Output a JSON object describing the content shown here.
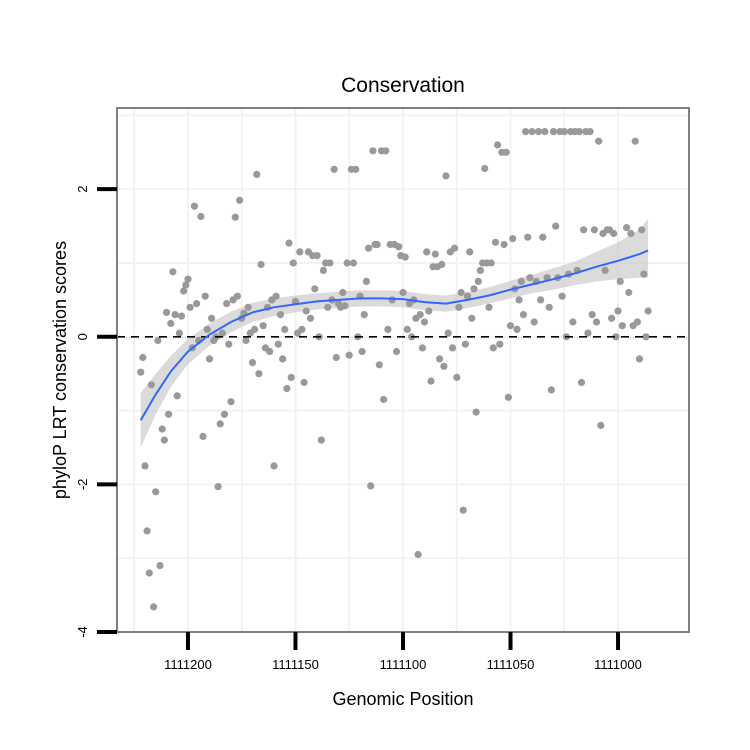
{
  "chart_data": {
    "type": "scatter",
    "title": "Conservation",
    "xlabel": "Genomic Position",
    "ylabel": "phyloP LRT conservation scores",
    "x_reversed": true,
    "xlim": [
      1111233,
      1110967
    ],
    "ylim": [
      -4,
      3.1
    ],
    "grid": true,
    "x_ticks": [
      1111200,
      1111150,
      1111100,
      1111050,
      1111000
    ],
    "x_tick_labels": [
      "1111200",
      "1111150",
      "1111100",
      "1111050",
      "1111000"
    ],
    "y_ticks": [
      -4,
      -2,
      0,
      2
    ],
    "y_tick_labels": [
      "-4",
      "-2",
      "0",
      "2"
    ],
    "reference_line": {
      "y": 0,
      "style": "dashed",
      "color": "#000000"
    },
    "colors": {
      "points": "#999999",
      "smooth": "#3366ff",
      "band": "#cccccc",
      "panel_border": "#7f7f7f",
      "grid": "#f2f2f2"
    },
    "points": [
      {
        "x": 1111222,
        "y": -0.48
      },
      {
        "x": 1111221,
        "y": -0.28
      },
      {
        "x": 1111220,
        "y": -1.75
      },
      {
        "x": 1111219,
        "y": -2.63
      },
      {
        "x": 1111218,
        "y": -3.2
      },
      {
        "x": 1111217,
        "y": -0.65
      },
      {
        "x": 1111216,
        "y": -3.66
      },
      {
        "x": 1111215,
        "y": -2.1
      },
      {
        "x": 1111214,
        "y": -0.05
      },
      {
        "x": 1111213,
        "y": -3.1
      },
      {
        "x": 1111212,
        "y": -1.25
      },
      {
        "x": 1111211,
        "y": -1.4
      },
      {
        "x": 1111210,
        "y": 0.33
      },
      {
        "x": 1111209,
        "y": -1.05
      },
      {
        "x": 1111208,
        "y": 0.18
      },
      {
        "x": 1111207,
        "y": 0.88
      },
      {
        "x": 1111206,
        "y": 0.3
      },
      {
        "x": 1111205,
        "y": -0.8
      },
      {
        "x": 1111204,
        "y": 0.05
      },
      {
        "x": 1111203,
        "y": 0.28
      },
      {
        "x": 1111202,
        "y": 0.62
      },
      {
        "x": 1111201,
        "y": 0.7
      },
      {
        "x": 1111200,
        "y": 0.78
      },
      {
        "x": 1111199,
        "y": 0.4
      },
      {
        "x": 1111198,
        "y": -0.15
      },
      {
        "x": 1111197,
        "y": 1.77
      },
      {
        "x": 1111196,
        "y": 0.45
      },
      {
        "x": 1111195,
        "y": -0.05
      },
      {
        "x": 1111194,
        "y": 1.63
      },
      {
        "x": 1111193,
        "y": -1.35
      },
      {
        "x": 1111192,
        "y": 0.55
      },
      {
        "x": 1111191,
        "y": 0.1
      },
      {
        "x": 1111190,
        "y": -0.3
      },
      {
        "x": 1111189,
        "y": 0.25
      },
      {
        "x": 1111188,
        "y": -0.05
      },
      {
        "x": 1111187,
        "y": 0.0
      },
      {
        "x": 1111186,
        "y": -2.03
      },
      {
        "x": 1111185,
        "y": -1.18
      },
      {
        "x": 1111184,
        "y": 0.05
      },
      {
        "x": 1111183,
        "y": -1.05
      },
      {
        "x": 1111182,
        "y": 0.45
      },
      {
        "x": 1111181,
        "y": -0.1
      },
      {
        "x": 1111180,
        "y": -0.88
      },
      {
        "x": 1111179,
        "y": 0.5
      },
      {
        "x": 1111178,
        "y": 1.62
      },
      {
        "x": 1111177,
        "y": 0.55
      },
      {
        "x": 1111176,
        "y": 1.85
      },
      {
        "x": 1111175,
        "y": 0.25
      },
      {
        "x": 1111174,
        "y": 0.32
      },
      {
        "x": 1111173,
        "y": -0.05
      },
      {
        "x": 1111172,
        "y": 0.4
      },
      {
        "x": 1111171,
        "y": 0.05
      },
      {
        "x": 1111170,
        "y": -0.35
      },
      {
        "x": 1111169,
        "y": 0.1
      },
      {
        "x": 1111168,
        "y": 2.2
      },
      {
        "x": 1111167,
        "y": -0.5
      },
      {
        "x": 1111166,
        "y": 0.98
      },
      {
        "x": 1111165,
        "y": 0.15
      },
      {
        "x": 1111164,
        "y": -0.15
      },
      {
        "x": 1111163,
        "y": 0.4
      },
      {
        "x": 1111162,
        "y": -0.2
      },
      {
        "x": 1111161,
        "y": 0.5
      },
      {
        "x": 1111160,
        "y": -1.75
      },
      {
        "x": 1111159,
        "y": 0.55
      },
      {
        "x": 1111158,
        "y": -0.1
      },
      {
        "x": 1111157,
        "y": 0.3
      },
      {
        "x": 1111156,
        "y": -0.3
      },
      {
        "x": 1111155,
        "y": 0.1
      },
      {
        "x": 1111154,
        "y": -0.7
      },
      {
        "x": 1111153,
        "y": 1.27
      },
      {
        "x": 1111152,
        "y": -0.55
      },
      {
        "x": 1111151,
        "y": 1.0
      },
      {
        "x": 1111150,
        "y": 0.48
      },
      {
        "x": 1111149,
        "y": 0.05
      },
      {
        "x": 1111148,
        "y": 1.15
      },
      {
        "x": 1111147,
        "y": 0.1
      },
      {
        "x": 1111146,
        "y": -0.62
      },
      {
        "x": 1111145,
        "y": 0.35
      },
      {
        "x": 1111144,
        "y": 1.15
      },
      {
        "x": 1111143,
        "y": 0.25
      },
      {
        "x": 1111142,
        "y": 1.1
      },
      {
        "x": 1111141,
        "y": 0.65
      },
      {
        "x": 1111140,
        "y": 1.1
      },
      {
        "x": 1111139,
        "y": 0.0
      },
      {
        "x": 1111138,
        "y": -1.4
      },
      {
        "x": 1111137,
        "y": 0.9
      },
      {
        "x": 1111136,
        "y": 1.0
      },
      {
        "x": 1111135,
        "y": 0.4
      },
      {
        "x": 1111134,
        "y": 1.0
      },
      {
        "x": 1111133,
        "y": 0.5
      },
      {
        "x": 1111132,
        "y": 2.27
      },
      {
        "x": 1111131,
        "y": -0.28
      },
      {
        "x": 1111130,
        "y": 0.45
      },
      {
        "x": 1111129,
        "y": 0.4
      },
      {
        "x": 1111128,
        "y": 0.6
      },
      {
        "x": 1111127,
        "y": 0.42
      },
      {
        "x": 1111126,
        "y": 1.0
      },
      {
        "x": 1111125,
        "y": -0.25
      },
      {
        "x": 1111124,
        "y": 2.27
      },
      {
        "x": 1111123,
        "y": 1.0
      },
      {
        "x": 1111122,
        "y": 2.27
      },
      {
        "x": 1111121,
        "y": 0.0
      },
      {
        "x": 1111120,
        "y": 0.55
      },
      {
        "x": 1111119,
        "y": -0.2
      },
      {
        "x": 1111118,
        "y": 0.3
      },
      {
        "x": 1111117,
        "y": 0.75
      },
      {
        "x": 1111116,
        "y": 1.2
      },
      {
        "x": 1111115,
        "y": -2.02
      },
      {
        "x": 1111114,
        "y": 2.52
      },
      {
        "x": 1111113,
        "y": 1.25
      },
      {
        "x": 1111112,
        "y": 1.25
      },
      {
        "x": 1111111,
        "y": -0.38
      },
      {
        "x": 1111110,
        "y": 2.52
      },
      {
        "x": 1111109,
        "y": -0.85
      },
      {
        "x": 1111108,
        "y": 2.52
      },
      {
        "x": 1111107,
        "y": 0.1
      },
      {
        "x": 1111106,
        "y": 1.25
      },
      {
        "x": 1111105,
        "y": 0.5
      },
      {
        "x": 1111104,
        "y": 1.25
      },
      {
        "x": 1111103,
        "y": -0.2
      },
      {
        "x": 1111102,
        "y": 1.22
      },
      {
        "x": 1111101,
        "y": 1.1
      },
      {
        "x": 1111100,
        "y": 0.6
      },
      {
        "x": 1111099,
        "y": 1.08
      },
      {
        "x": 1111098,
        "y": 0.1
      },
      {
        "x": 1111097,
        "y": 0.45
      },
      {
        "x": 1111096,
        "y": 0.0
      },
      {
        "x": 1111095,
        "y": 0.5
      },
      {
        "x": 1111094,
        "y": 0.25
      },
      {
        "x": 1111093,
        "y": -2.95
      },
      {
        "x": 1111092,
        "y": 0.3
      },
      {
        "x": 1111091,
        "y": -0.15
      },
      {
        "x": 1111090,
        "y": 0.2
      },
      {
        "x": 1111089,
        "y": 1.15
      },
      {
        "x": 1111088,
        "y": 0.35
      },
      {
        "x": 1111087,
        "y": -0.6
      },
      {
        "x": 1111086,
        "y": 0.95
      },
      {
        "x": 1111085,
        "y": 1.12
      },
      {
        "x": 1111084,
        "y": 0.95
      },
      {
        "x": 1111083,
        "y": -0.3
      },
      {
        "x": 1111082,
        "y": 0.98
      },
      {
        "x": 1111081,
        "y": -0.4
      },
      {
        "x": 1111080,
        "y": 2.18
      },
      {
        "x": 1111079,
        "y": 0.05
      },
      {
        "x": 1111078,
        "y": 1.15
      },
      {
        "x": 1111077,
        "y": -0.15
      },
      {
        "x": 1111076,
        "y": 1.2
      },
      {
        "x": 1111075,
        "y": -0.55
      },
      {
        "x": 1111074,
        "y": 0.4
      },
      {
        "x": 1111073,
        "y": 0.6
      },
      {
        "x": 1111072,
        "y": -2.35
      },
      {
        "x": 1111071,
        "y": -0.1
      },
      {
        "x": 1111070,
        "y": 0.55
      },
      {
        "x": 1111069,
        "y": 1.15
      },
      {
        "x": 1111068,
        "y": 0.25
      },
      {
        "x": 1111067,
        "y": 0.65
      },
      {
        "x": 1111066,
        "y": -1.02
      },
      {
        "x": 1111065,
        "y": 0.75
      },
      {
        "x": 1111064,
        "y": 0.9
      },
      {
        "x": 1111063,
        "y": 1.0
      },
      {
        "x": 1111062,
        "y": 2.28
      },
      {
        "x": 1111061,
        "y": 1.0
      },
      {
        "x": 1111060,
        "y": 0.4
      },
      {
        "x": 1111059,
        "y": 1.0
      },
      {
        "x": 1111058,
        "y": -0.15
      },
      {
        "x": 1111057,
        "y": 1.28
      },
      {
        "x": 1111056,
        "y": 2.6
      },
      {
        "x": 1111055,
        "y": -0.1
      },
      {
        "x": 1111054,
        "y": 2.5
      },
      {
        "x": 1111053,
        "y": 1.25
      },
      {
        "x": 1111052,
        "y": 2.5
      },
      {
        "x": 1111051,
        "y": -0.82
      },
      {
        "x": 1111050,
        "y": 0.15
      },
      {
        "x": 1111049,
        "y": 1.33
      },
      {
        "x": 1111048,
        "y": 0.65
      },
      {
        "x": 1111047,
        "y": 0.1
      },
      {
        "x": 1111046,
        "y": 0.5
      },
      {
        "x": 1111045,
        "y": 0.75
      },
      {
        "x": 1111044,
        "y": 0.3
      },
      {
        "x": 1111043,
        "y": 2.78
      },
      {
        "x": 1111042,
        "y": 1.35
      },
      {
        "x": 1111041,
        "y": 0.8
      },
      {
        "x": 1111040,
        "y": 2.78
      },
      {
        "x": 1111039,
        "y": 0.2
      },
      {
        "x": 1111038,
        "y": 0.75
      },
      {
        "x": 1111037,
        "y": 2.78
      },
      {
        "x": 1111036,
        "y": 0.5
      },
      {
        "x": 1111035,
        "y": 1.35
      },
      {
        "x": 1111034,
        "y": 2.78
      },
      {
        "x": 1111033,
        "y": 0.8
      },
      {
        "x": 1111032,
        "y": 0.4
      },
      {
        "x": 1111031,
        "y": -0.72
      },
      {
        "x": 1111030,
        "y": 2.78
      },
      {
        "x": 1111029,
        "y": 1.5
      },
      {
        "x": 1111028,
        "y": 0.8
      },
      {
        "x": 1111027,
        "y": 2.78
      },
      {
        "x": 1111026,
        "y": 0.55
      },
      {
        "x": 1111025,
        "y": 2.78
      },
      {
        "x": 1111024,
        "y": 0.0
      },
      {
        "x": 1111023,
        "y": 0.85
      },
      {
        "x": 1111022,
        "y": 2.78
      },
      {
        "x": 1111021,
        "y": 0.2
      },
      {
        "x": 1111020,
        "y": 2.78
      },
      {
        "x": 1111019,
        "y": 0.9
      },
      {
        "x": 1111018,
        "y": 2.78
      },
      {
        "x": 1111017,
        "y": -0.62
      },
      {
        "x": 1111016,
        "y": 1.45
      },
      {
        "x": 1111015,
        "y": 2.78
      },
      {
        "x": 1111014,
        "y": 0.05
      },
      {
        "x": 1111013,
        "y": 2.78
      },
      {
        "x": 1111012,
        "y": 0.3
      },
      {
        "x": 1111011,
        "y": 1.45
      },
      {
        "x": 1111010,
        "y": 0.2
      },
      {
        "x": 1111009,
        "y": 2.65
      },
      {
        "x": 1111008,
        "y": -1.2
      },
      {
        "x": 1111007,
        "y": 1.4
      },
      {
        "x": 1111006,
        "y": 0.9
      },
      {
        "x": 1111005,
        "y": 1.45
      },
      {
        "x": 1111004,
        "y": 1.45
      },
      {
        "x": 1111003,
        "y": 0.25
      },
      {
        "x": 1111002,
        "y": 1.4
      },
      {
        "x": 1111001,
        "y": 0.0
      },
      {
        "x": 1111000,
        "y": 0.35
      },
      {
        "x": 1110999,
        "y": 0.75
      },
      {
        "x": 1110998,
        "y": 0.15
      },
      {
        "x": 1110996,
        "y": 1.48
      },
      {
        "x": 1110995,
        "y": 0.6
      },
      {
        "x": 1110994,
        "y": 1.4
      },
      {
        "x": 1110993,
        "y": 0.15
      },
      {
        "x": 1110992,
        "y": 2.65
      },
      {
        "x": 1110991,
        "y": 0.2
      },
      {
        "x": 1110990,
        "y": -0.3
      },
      {
        "x": 1110989,
        "y": 1.45
      },
      {
        "x": 1110988,
        "y": 0.85
      },
      {
        "x": 1110987,
        "y": 0.0
      },
      {
        "x": 1110986,
        "y": 0.35
      }
    ],
    "smooth": [
      {
        "x": 1111222,
        "y": -1.13,
        "lo": -1.5,
        "hi": -0.76
      },
      {
        "x": 1111215,
        "y": -0.78,
        "lo": -1.05,
        "hi": -0.5
      },
      {
        "x": 1111208,
        "y": -0.47,
        "lo": -0.68,
        "hi": -0.26
      },
      {
        "x": 1111200,
        "y": -0.2,
        "lo": -0.37,
        "hi": -0.03
      },
      {
        "x": 1111190,
        "y": 0.03,
        "lo": -0.12,
        "hi": 0.18
      },
      {
        "x": 1111180,
        "y": 0.2,
        "lo": 0.06,
        "hi": 0.34
      },
      {
        "x": 1111170,
        "y": 0.33,
        "lo": 0.2,
        "hi": 0.46
      },
      {
        "x": 1111160,
        "y": 0.4,
        "lo": 0.28,
        "hi": 0.52
      },
      {
        "x": 1111150,
        "y": 0.44,
        "lo": 0.33,
        "hi": 0.56
      },
      {
        "x": 1111140,
        "y": 0.48,
        "lo": 0.37,
        "hi": 0.59
      },
      {
        "x": 1111130,
        "y": 0.5,
        "lo": 0.39,
        "hi": 0.61
      },
      {
        "x": 1111120,
        "y": 0.52,
        "lo": 0.41,
        "hi": 0.63
      },
      {
        "x": 1111110,
        "y": 0.52,
        "lo": 0.41,
        "hi": 0.63
      },
      {
        "x": 1111100,
        "y": 0.51,
        "lo": 0.4,
        "hi": 0.62
      },
      {
        "x": 1111090,
        "y": 0.47,
        "lo": 0.36,
        "hi": 0.58
      },
      {
        "x": 1111080,
        "y": 0.45,
        "lo": 0.34,
        "hi": 0.56
      },
      {
        "x": 1111070,
        "y": 0.5,
        "lo": 0.39,
        "hi": 0.61
      },
      {
        "x": 1111060,
        "y": 0.56,
        "lo": 0.45,
        "hi": 0.67
      },
      {
        "x": 1111050,
        "y": 0.64,
        "lo": 0.52,
        "hi": 0.76
      },
      {
        "x": 1111040,
        "y": 0.71,
        "lo": 0.59,
        "hi": 0.84
      },
      {
        "x": 1111030,
        "y": 0.78,
        "lo": 0.64,
        "hi": 0.93
      },
      {
        "x": 1111020,
        "y": 0.86,
        "lo": 0.7,
        "hi": 1.02
      },
      {
        "x": 1111010,
        "y": 0.95,
        "lo": 0.75,
        "hi": 1.15
      },
      {
        "x": 1111000,
        "y": 1.03,
        "lo": 0.78,
        "hi": 1.28
      },
      {
        "x": 1110990,
        "y": 1.12,
        "lo": 0.8,
        "hi": 1.45
      },
      {
        "x": 1110986,
        "y": 1.17,
        "lo": 0.8,
        "hi": 1.6
      }
    ]
  }
}
